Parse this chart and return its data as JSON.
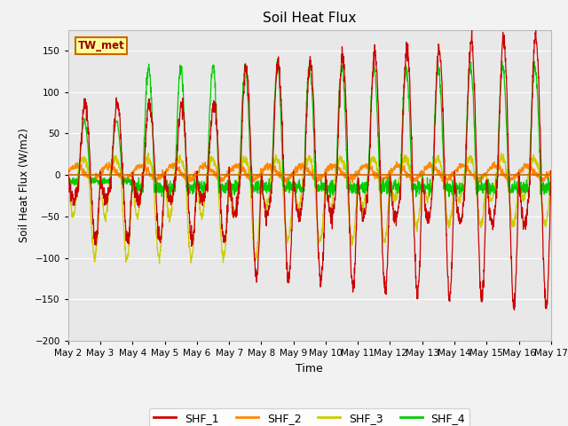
{
  "title": "Soil Heat Flux",
  "xlabel": "Time",
  "ylabel": "Soil Heat Flux (W/m2)",
  "ylim": [
    -200,
    175
  ],
  "yticks": [
    -200,
    -150,
    -100,
    -50,
    0,
    50,
    100,
    150
  ],
  "colors": {
    "SHF_1": "#cc0000",
    "SHF_2": "#ff8800",
    "SHF_3": "#cccc00",
    "SHF_4": "#00cc00"
  },
  "hline_color": "#cc6600",
  "annotation_text": "TW_met",
  "annotation_box_facecolor": "#ffff99",
  "annotation_box_edgecolor": "#cc6600",
  "plot_bg": "#e8e8e8",
  "fig_bg": "#f2f2f2",
  "grid_color": "#ffffff",
  "n_days": 15,
  "ppd": 144,
  "start_day": 2
}
